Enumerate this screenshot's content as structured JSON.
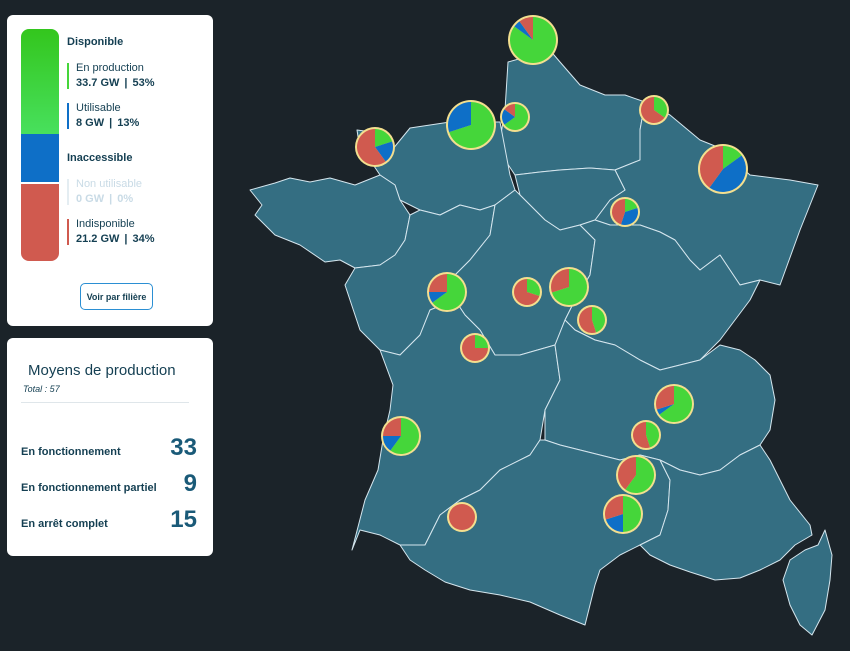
{
  "capacity": {
    "available_title": "Disponible",
    "inaccessible_title": "Inaccessible",
    "items": [
      {
        "label": "En production",
        "gw": "33.7 GW",
        "pct": "53%",
        "color": "#45d63a",
        "dim": false
      },
      {
        "label": "Utilisable",
        "gw": "8 GW",
        "pct": "13%",
        "color": "#0e6fc7",
        "dim": false
      },
      {
        "label": "Non utilisable",
        "gw": "0 GW",
        "pct": "0%",
        "color": "#c9dbe6",
        "dim": true
      },
      {
        "label": "Indisponible",
        "gw": "21.2 GW",
        "pct": "34%",
        "color": "#d05a4f",
        "dim": false
      }
    ],
    "filter_button": "Voir par filière"
  },
  "production": {
    "title": "Moyens de production",
    "total": "Total : 57",
    "rows": [
      {
        "label": "En fonctionnement",
        "value": "33"
      },
      {
        "label": "En fonctionnement partiel",
        "value": "9"
      },
      {
        "label": "En arrêt complet",
        "value": "15"
      }
    ]
  },
  "map": {
    "land_color": "#346e82",
    "pie_colors": {
      "production": "#45d63a",
      "usable": "#0e6fc7",
      "unavailable": "#d05a4f",
      "ring": "#f3df8f"
    },
    "sites": [
      {
        "name": "site-gravelines",
        "production": 0.85,
        "usable": 0.05,
        "unavailable": 0.1
      },
      {
        "name": "site-paluel",
        "production": 0.7,
        "usable": 0.3,
        "unavailable": 0.0
      },
      {
        "name": "site-penly",
        "production": 0.65,
        "usable": 0.2,
        "unavailable": 0.15
      },
      {
        "name": "site-flamanville",
        "production": 0.2,
        "usable": 0.2,
        "unavailable": 0.6
      },
      {
        "name": "site-chooz",
        "production": 0.35,
        "usable": 0.0,
        "unavailable": 0.65
      },
      {
        "name": "site-cattenom",
        "production": 0.15,
        "usable": 0.45,
        "unavailable": 0.4
      },
      {
        "name": "site-nogent",
        "production": 0.2,
        "usable": 0.35,
        "unavailable": 0.45
      },
      {
        "name": "site-saint-laurent",
        "production": 0.3,
        "usable": 0.0,
        "unavailable": 0.7
      },
      {
        "name": "site-dampierre",
        "production": 0.7,
        "usable": 0.0,
        "unavailable": 0.3
      },
      {
        "name": "site-chinon",
        "production": 0.65,
        "usable": 0.1,
        "unavailable": 0.25
      },
      {
        "name": "site-belleville",
        "production": 0.45,
        "usable": 0.0,
        "unavailable": 0.55
      },
      {
        "name": "site-civaux",
        "production": 0.25,
        "usable": 0.0,
        "unavailable": 0.75
      },
      {
        "name": "site-bugey",
        "production": 0.65,
        "usable": 0.05,
        "unavailable": 0.3
      },
      {
        "name": "site-saint-alban",
        "production": 0.45,
        "usable": 0.0,
        "unavailable": 0.55
      },
      {
        "name": "site-blayais",
        "production": 0.6,
        "usable": 0.15,
        "unavailable": 0.25
      },
      {
        "name": "site-cruas",
        "production": 0.6,
        "usable": 0.0,
        "unavailable": 0.4
      },
      {
        "name": "site-tricastin",
        "production": 0.5,
        "usable": 0.2,
        "unavailable": 0.3
      },
      {
        "name": "site-golfech",
        "production": 0.0,
        "usable": 0.0,
        "unavailable": 1.0
      }
    ]
  }
}
